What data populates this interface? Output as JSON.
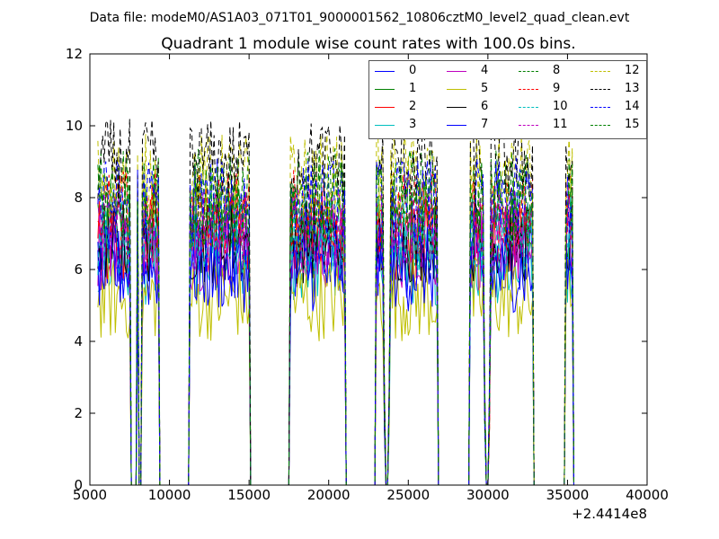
{
  "header_text": "Data file: modeM0/AS1A03_071T01_9000001562_10806cztM0_level2_quad_clean.evt",
  "chart_data": {
    "type": "line",
    "title": "Quadrant 1 module wise count rates with 100.0s bins.",
    "xlabel": "",
    "ylabel": "",
    "xlim": [
      5000,
      40000
    ],
    "ylim": [
      0,
      12
    ],
    "x_ticks": [
      5000,
      10000,
      15000,
      20000,
      25000,
      30000,
      35000,
      40000
    ],
    "x_tick_labels": [
      "5000",
      "10000",
      "15000",
      "20000",
      "25000",
      "30000",
      "35000",
      "40000"
    ],
    "y_ticks": [
      0,
      2,
      4,
      6,
      8,
      10,
      12
    ],
    "y_tick_labels": [
      "0",
      "2",
      "4",
      "6",
      "8",
      "10",
      "12"
    ],
    "x_offset_text": "+2.4414e8",
    "grid": false,
    "legend_placement": "top-right",
    "legend_columns": 4,
    "segments": [
      {
        "start": 5500,
        "end": 7550
      },
      {
        "start": 7950,
        "end": 8050
      },
      {
        "start": 8250,
        "end": 9350
      },
      {
        "start": 11250,
        "end": 15050
      },
      {
        "start": 17550,
        "end": 21050
      },
      {
        "start": 22950,
        "end": 23550
      },
      {
        "start": 23750,
        "end": 26850
      },
      {
        "start": 28850,
        "end": 29850
      },
      {
        "start": 30050,
        "end": 32850
      },
      {
        "start": 34850,
        "end": 35350
      }
    ],
    "dip_regions": [
      {
        "start": 7550,
        "end": 7950
      },
      {
        "start": 23450,
        "end": 23850
      },
      {
        "start": 29750,
        "end": 30150
      }
    ],
    "series": [
      {
        "name": "0",
        "color": "#0000ff",
        "dash": "solid",
        "level": 6.4
      },
      {
        "name": "1",
        "color": "#008000",
        "dash": "solid",
        "level": 7.3
      },
      {
        "name": "2",
        "color": "#ff0000",
        "dash": "solid",
        "level": 6.9
      },
      {
        "name": "3",
        "color": "#00bfbf",
        "dash": "solid",
        "level": 6.2
      },
      {
        "name": "4",
        "color": "#bf00bf",
        "dash": "solid",
        "level": 6.6
      },
      {
        "name": "5",
        "color": "#bfbf00",
        "dash": "solid",
        "level": 5.2
      },
      {
        "name": "6",
        "color": "#000000",
        "dash": "solid",
        "level": 6.8
      },
      {
        "name": "7",
        "color": "#0000ff",
        "dash": "solid",
        "level": 6.0
      },
      {
        "name": "8",
        "color": "#008000",
        "dash": "dashed",
        "level": 8.2
      },
      {
        "name": "9",
        "color": "#ff0000",
        "dash": "dashed",
        "level": 7.6
      },
      {
        "name": "10",
        "color": "#00bfbf",
        "dash": "dashed",
        "level": 7.0
      },
      {
        "name": "11",
        "color": "#bf00bf",
        "dash": "dashed",
        "level": 7.1
      },
      {
        "name": "12",
        "color": "#bfbf00",
        "dash": "dashed",
        "level": 8.6
      },
      {
        "name": "13",
        "color": "#000000",
        "dash": "dashed",
        "level": 9.0
      },
      {
        "name": "14",
        "color": "#0000ff",
        "dash": "dashed",
        "level": 7.9
      },
      {
        "name": "15",
        "color": "#008000",
        "dash": "dashed",
        "level": 7.8
      }
    ]
  }
}
